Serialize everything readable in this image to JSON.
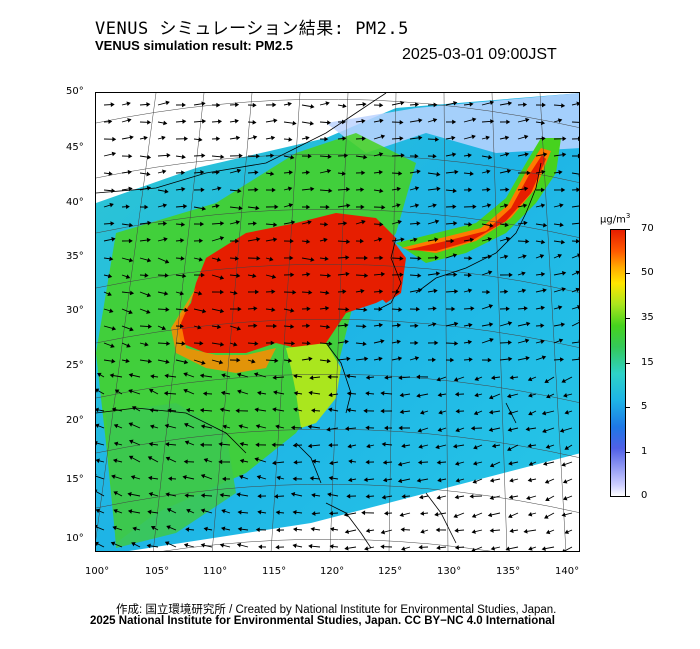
{
  "header": {
    "title_jp": "VENUS シミュレーション結果: PM2.5",
    "title_en": "VENUS simulation result: PM2.5",
    "datetime": "2025-03-01 09:00JST"
  },
  "map": {
    "lat_ticks": [
      "50°",
      "45°",
      "40°",
      "35°",
      "30°",
      "25°",
      "20°",
      "15°",
      "10°"
    ],
    "lon_ticks": [
      "100°",
      "105°",
      "110°",
      "115°",
      "120°",
      "125°",
      "130°",
      "135°",
      "140°"
    ]
  },
  "legend": {
    "unit": "μg/m",
    "unit_sup": "3",
    "ticks": [
      "70",
      "50",
      "35",
      "15",
      "5",
      "1",
      "0"
    ]
  },
  "colors": {
    "high": "#e61e00",
    "mid": "#46d21e",
    "low": "#1e78e6",
    "none": "#ffffff"
  },
  "footer": {
    "credit": "作成: 国立環境研究所 / Created by National Institute for Environmental Studies, Japan.",
    "copyright": "2025 National Institute for Environmental Studies, Japan. CC BY−NC 4.0 International"
  }
}
